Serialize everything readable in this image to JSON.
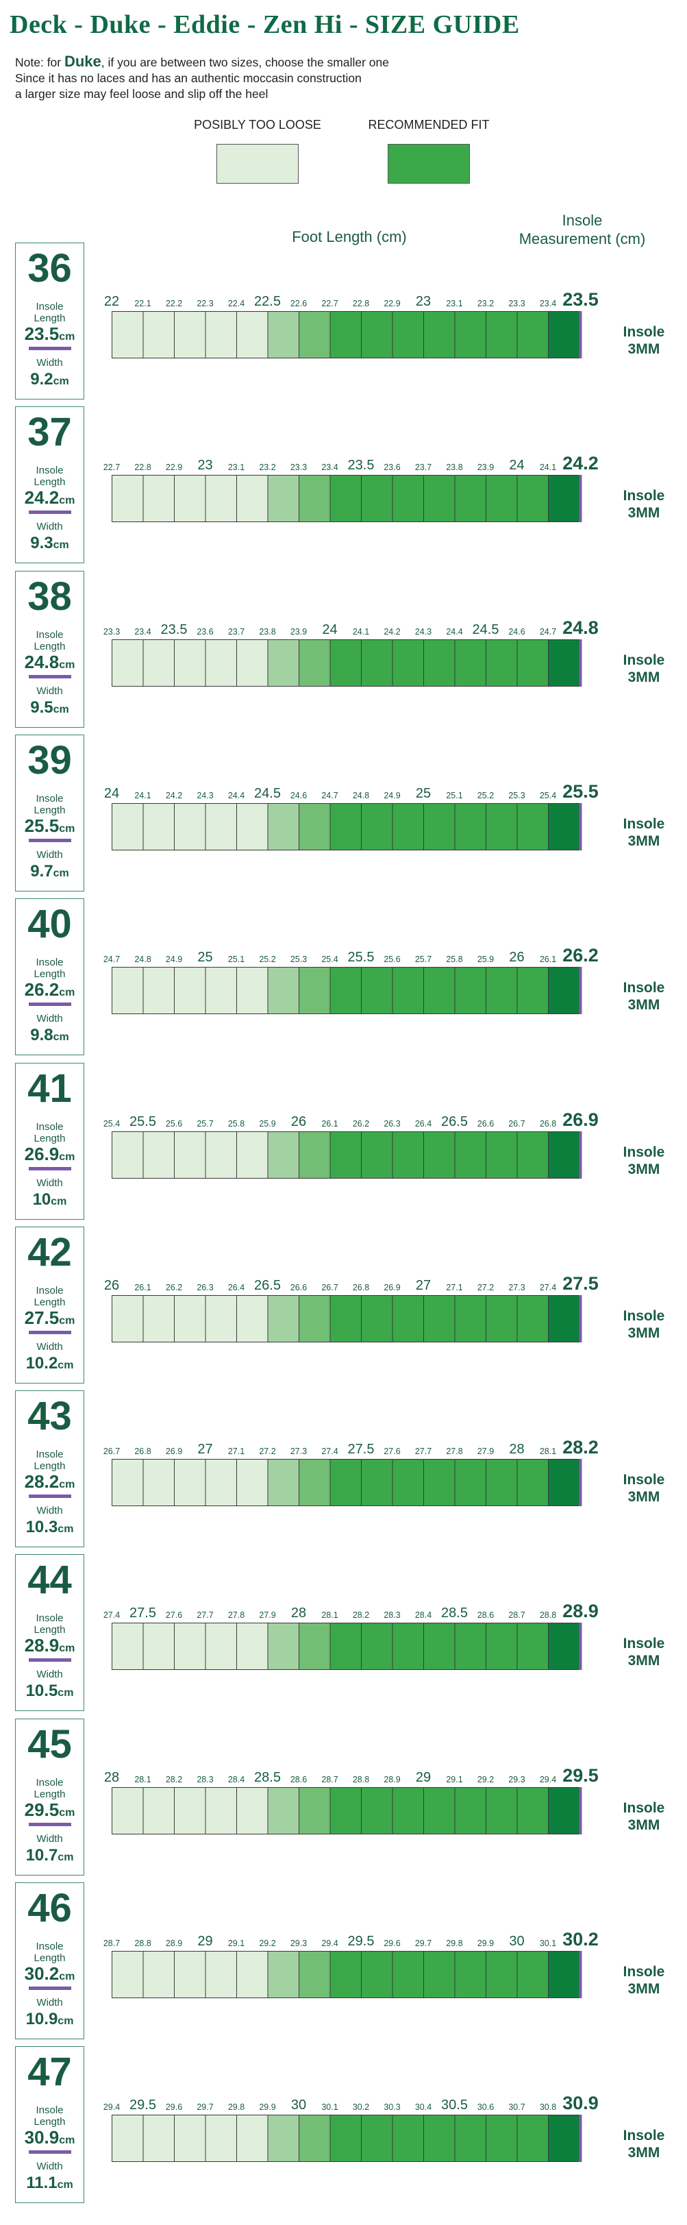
{
  "title": "Deck - Duke - Eddie - Zen Hi - SIZE GUIDE",
  "notes": {
    "line1_prefix": "Note: for ",
    "line1_brand": "Duke",
    "line1_suffix": ", if you are between two sizes, choose the smaller one",
    "line2": "Since it has no laces and has an authentic moccasin construction",
    "line3": "a larger size may feel loose and slip off the heel"
  },
  "legend": {
    "loose_label": "POSIBLY TOO LOOSE",
    "recommended_label": "RECOMMENDED FIT"
  },
  "headers": {
    "foot_length": "Foot Length (cm)",
    "insole_line1": "Insole",
    "insole_line2": "Measurement (cm)"
  },
  "labels": {
    "insole_length": "Insole\nLength",
    "width": "Width",
    "unit": "cm",
    "insole_thickness": "Insole\n3MM"
  },
  "colors": {
    "loose": "#e0efdc",
    "transition1": "#a2d2a1",
    "transition2": "#72be74",
    "recommended": "#3ba94a",
    "insole_end": "#0c7f3c",
    "marker": "#7a5ba8",
    "text": "#1a5c43"
  },
  "sizes": [
    {
      "size": "36",
      "insole": "23.5",
      "width": "9.2",
      "ticks": [
        "22",
        "22.1",
        "22.2",
        "22.3",
        "22.4",
        "22.5",
        "22.6",
        "22.7",
        "22.8",
        "22.9",
        "23",
        "23.1",
        "23.2",
        "23.3",
        "23.4",
        "23.5"
      ]
    },
    {
      "size": "37",
      "insole": "24.2",
      "width": "9.3",
      "ticks": [
        "22.7",
        "22.8",
        "22.9",
        "23",
        "23.1",
        "23.2",
        "23.3",
        "23.4",
        "23.5",
        "23.6",
        "23.7",
        "23.8",
        "23.9",
        "24",
        "24.1",
        "24.2"
      ]
    },
    {
      "size": "38",
      "insole": "24.8",
      "width": "9.5",
      "ticks": [
        "23.3",
        "23.4",
        "23.5",
        "23.6",
        "23.7",
        "23.8",
        "23.9",
        "24",
        "24.1",
        "24.2",
        "24.3",
        "24.4",
        "24.5",
        "24.6",
        "24.7",
        "24.8"
      ]
    },
    {
      "size": "39",
      "insole": "25.5",
      "width": "9.7",
      "ticks": [
        "24",
        "24.1",
        "24.2",
        "24.3",
        "24.4",
        "24.5",
        "24.6",
        "24.7",
        "24.8",
        "24.9",
        "25",
        "25.1",
        "25.2",
        "25.3",
        "25.4",
        "25.5"
      ]
    },
    {
      "size": "40",
      "insole": "26.2",
      "width": "9.8",
      "ticks": [
        "24.7",
        "24.8",
        "24.9",
        "25",
        "25.1",
        "25.2",
        "25.3",
        "25.4",
        "25.5",
        "25.6",
        "25.7",
        "25.8",
        "25.9",
        "26",
        "26.1",
        "26.2"
      ]
    },
    {
      "size": "41",
      "insole": "26.9",
      "width": "10",
      "ticks": [
        "25.4",
        "25.5",
        "25.6",
        "25.7",
        "25.8",
        "25.9",
        "26",
        "26.1",
        "26.2",
        "26.3",
        "26.4",
        "26.5",
        "26.6",
        "26.7",
        "26.8",
        "26.9"
      ]
    },
    {
      "size": "42",
      "insole": "27.5",
      "width": "10.2",
      "ticks": [
        "26",
        "26.1",
        "26.2",
        "26.3",
        "26.4",
        "26.5",
        "26.6",
        "26.7",
        "26.8",
        "26.9",
        "27",
        "27.1",
        "27.2",
        "27.3",
        "27.4",
        "27.5"
      ]
    },
    {
      "size": "43",
      "insole": "28.2",
      "width": "10.3",
      "ticks": [
        "26.7",
        "26.8",
        "26.9",
        "27",
        "27.1",
        "27.2",
        "27.3",
        "27.4",
        "27.5",
        "27.6",
        "27.7",
        "27.8",
        "27.9",
        "28",
        "28.1",
        "28.2"
      ]
    },
    {
      "size": "44",
      "insole": "28.9",
      "width": "10.5",
      "ticks": [
        "27.4",
        "27.5",
        "27.6",
        "27.7",
        "27.8",
        "27.9",
        "28",
        "28.1",
        "28.2",
        "28.3",
        "28.4",
        "28.5",
        "28.6",
        "28.7",
        "28.8",
        "28.9"
      ]
    },
    {
      "size": "45",
      "insole": "29.5",
      "width": "10.7",
      "ticks": [
        "28",
        "28.1",
        "28.2",
        "28.3",
        "28.4",
        "28.5",
        "28.6",
        "28.7",
        "28.8",
        "28.9",
        "29",
        "29.1",
        "29.2",
        "29.3",
        "29.4",
        "29.5"
      ]
    },
    {
      "size": "46",
      "insole": "30.2",
      "width": "10.9",
      "ticks": [
        "28.7",
        "28.8",
        "28.9",
        "29",
        "29.1",
        "29.2",
        "29.3",
        "29.4",
        "29.5",
        "29.6",
        "29.7",
        "29.8",
        "29.9",
        "30",
        "30.1",
        "30.2"
      ]
    },
    {
      "size": "47",
      "insole": "30.9",
      "width": "11.1",
      "ticks": [
        "29.4",
        "29.5",
        "29.6",
        "29.7",
        "29.8",
        "29.9",
        "30",
        "30.1",
        "30.2",
        "30.3",
        "30.4",
        "30.5",
        "30.6",
        "30.7",
        "30.8",
        "30.9"
      ]
    }
  ]
}
